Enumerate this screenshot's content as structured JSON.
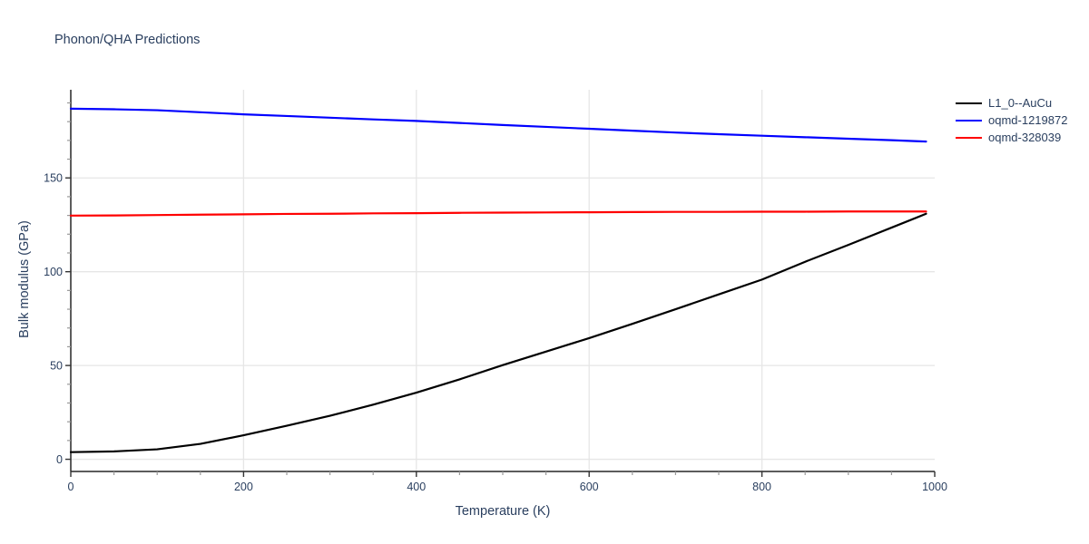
{
  "chart_data": {
    "type": "line",
    "title": "Phonon/QHA Predictions",
    "xlabel": "Temperature (K)",
    "ylabel": "Bulk modulus (GPa)",
    "xlim": [
      0,
      1000
    ],
    "ylim": [
      -6.5,
      197
    ],
    "xticks": [
      0,
      200,
      400,
      600,
      800,
      1000
    ],
    "yticks": [
      0,
      50,
      100,
      150
    ],
    "x_minor_step": 50,
    "y_minor_step": 10,
    "grid": true,
    "legend_position": "top-right-outside",
    "x": [
      0,
      50,
      100,
      150,
      200,
      250,
      300,
      350,
      400,
      450,
      500,
      550,
      600,
      650,
      700,
      750,
      800,
      850,
      900,
      950,
      990
    ],
    "series": [
      {
        "name": "L1_0--AuCu",
        "color": "#000000",
        "values": [
          3.8,
          4.2,
          5.3,
          8.2,
          12.8,
          17.9,
          23.2,
          29.1,
          35.5,
          42.6,
          50.2,
          57.4,
          64.6,
          72.2,
          80.0,
          87.9,
          95.8,
          105.3,
          114.3,
          123.5,
          130.9
        ]
      },
      {
        "name": "oqmd-1219872",
        "color": "#0000ff",
        "values": [
          186.9,
          186.6,
          186.1,
          185.0,
          183.9,
          183.0,
          182.1,
          181.2,
          180.4,
          179.3,
          178.2,
          177.2,
          176.2,
          175.2,
          174.2,
          173.3,
          172.5,
          171.7,
          170.9,
          170.1,
          169.4
        ]
      },
      {
        "name": "oqmd-328039",
        "color": "#ff0000",
        "values": [
          129.9,
          130.0,
          130.2,
          130.4,
          130.6,
          130.8,
          130.9,
          131.1,
          131.2,
          131.4,
          131.5,
          131.6,
          131.7,
          131.8,
          131.9,
          131.9,
          132.0,
          132.0,
          132.1,
          132.1,
          132.1
        ]
      }
    ]
  },
  "colors": {
    "text": "#2a3f5f",
    "grid": "#e6e6e6",
    "axis": "#262626",
    "tick_major": "#333333",
    "tick_minor": "#999999",
    "background": "#ffffff"
  }
}
